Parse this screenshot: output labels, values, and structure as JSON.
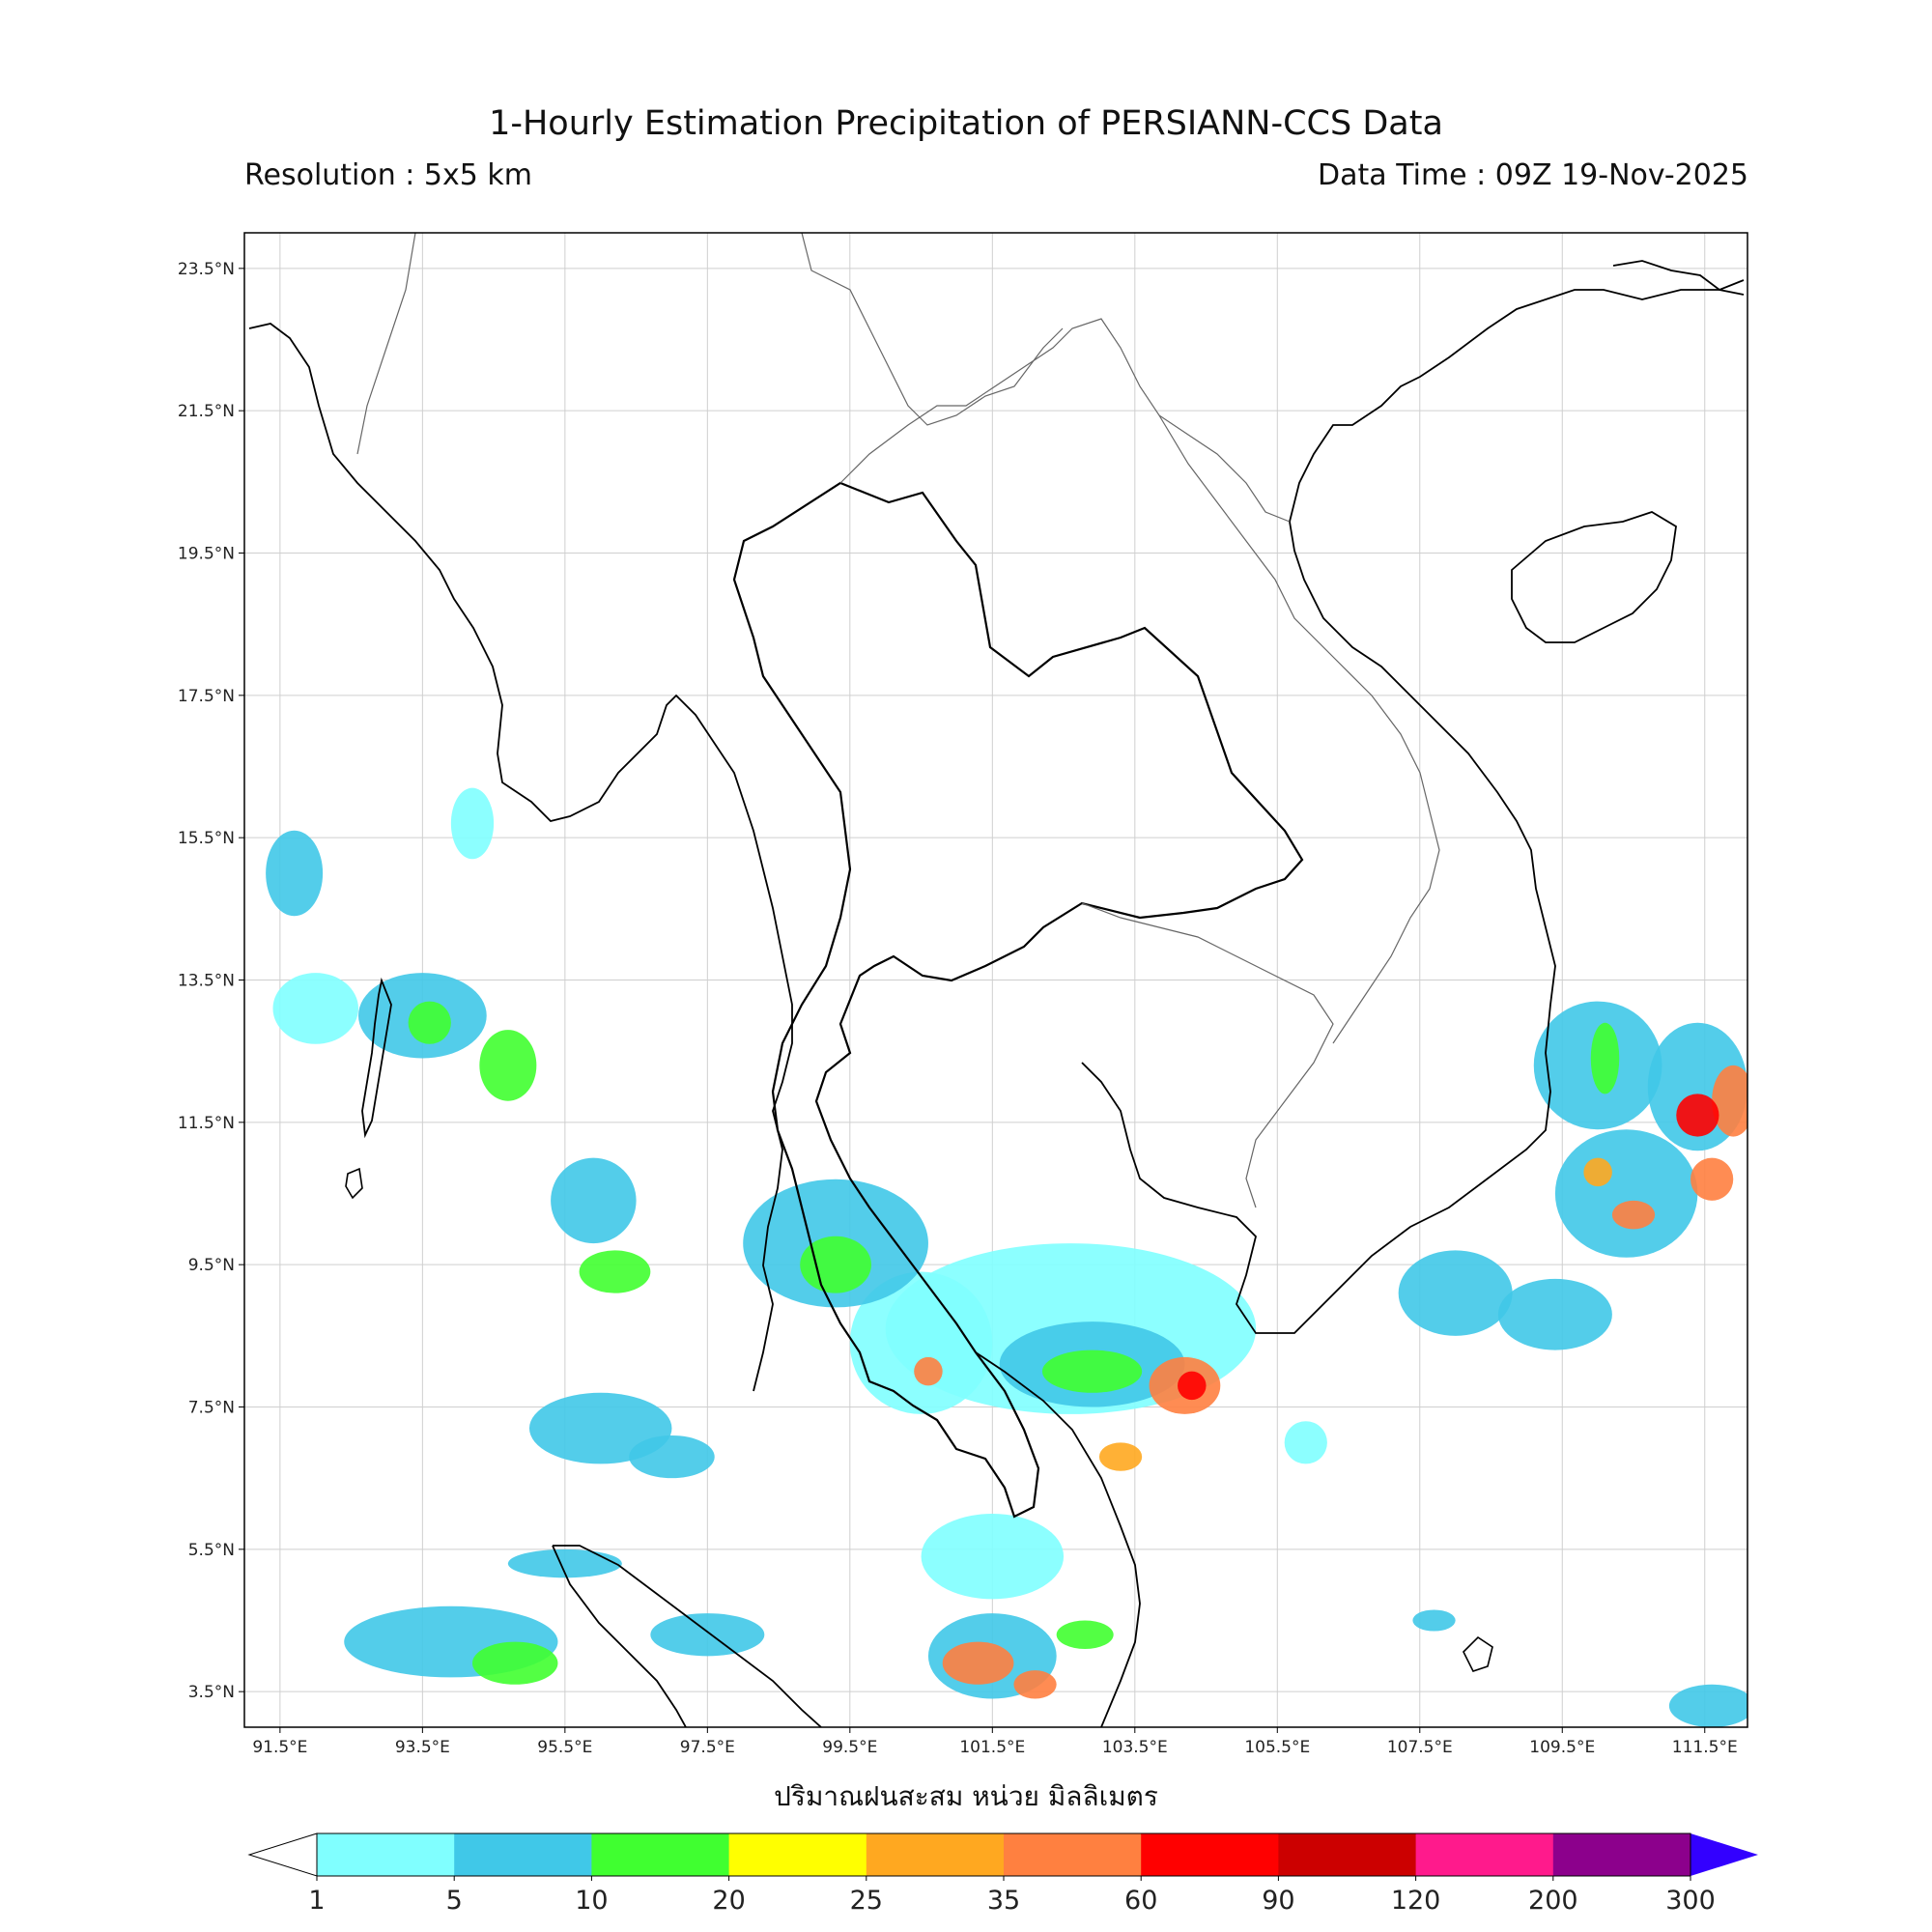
{
  "title": "1-Hourly Estimation Precipitation of PERSIANN-CCS Data",
  "resolution_text": "Resolution : 5x5 km",
  "data_time_text": "Data Time : 09Z 19-Nov-2025",
  "xlabel": "ปริมาณฝนสะสม หน่วย มิลลิเมตร",
  "map": {
    "lon_range": [
      91.0,
      112.1
    ],
    "lat_range": [
      3.0,
      24.0
    ],
    "lon_ticks": [
      "91.5°E",
      "93.5°E",
      "95.5°E",
      "97.5°E",
      "99.5°E",
      "101.5°E",
      "103.5°E",
      "105.5°E",
      "107.5°E",
      "109.5°E",
      "111.5°E"
    ],
    "lat_ticks": [
      "23.5°N",
      "21.5°N",
      "19.5°N",
      "17.5°N",
      "15.5°N",
      "13.5°N",
      "11.5°N",
      "9.5°N",
      "7.5°N",
      "5.5°N",
      "3.5°N"
    ],
    "grid": true
  },
  "colorbar": {
    "labels": [
      "1",
      "5",
      "10",
      "20",
      "25",
      "35",
      "60",
      "90",
      "120",
      "200",
      "300"
    ],
    "colors": [
      "#80ffff",
      "#40c8e8",
      "#40ff30",
      "#ffff00",
      "#ffa820",
      "#ff8040",
      "#ff0000",
      "#cc0000",
      "#ff1a8c",
      "#8c008c"
    ],
    "extend_low_color": "#ffffff",
    "extend_high_color": "#3300ff"
  },
  "rain_areas": [
    {
      "lon": 91.7,
      "lat": 15.0,
      "rx": 0.4,
      "ry": 0.6,
      "level": 1
    },
    {
      "lon": 92.0,
      "lat": 13.1,
      "rx": 0.6,
      "ry": 0.5,
      "level": 0
    },
    {
      "lon": 93.5,
      "lat": 13.0,
      "rx": 0.9,
      "ry": 0.6,
      "level": 1
    },
    {
      "lon": 94.7,
      "lat": 12.3,
      "rx": 0.4,
      "ry": 0.5,
      "level": 2
    },
    {
      "lon": 93.6,
      "lat": 12.9,
      "rx": 0.3,
      "ry": 0.3,
      "level": 2
    },
    {
      "lon": 94.2,
      "lat": 15.7,
      "rx": 0.3,
      "ry": 0.5,
      "level": 0
    },
    {
      "lon": 95.9,
      "lat": 10.4,
      "rx": 0.6,
      "ry": 0.6,
      "level": 1
    },
    {
      "lon": 96.2,
      "lat": 9.4,
      "rx": 0.5,
      "ry": 0.3,
      "level": 2
    },
    {
      "lon": 93.9,
      "lat": 4.2,
      "rx": 1.5,
      "ry": 0.5,
      "level": 1
    },
    {
      "lon": 94.8,
      "lat": 3.9,
      "rx": 0.6,
      "ry": 0.3,
      "level": 2
    },
    {
      "lon": 96.0,
      "lat": 7.2,
      "rx": 1.0,
      "ry": 0.5,
      "level": 1
    },
    {
      "lon": 97.0,
      "lat": 6.8,
      "rx": 0.6,
      "ry": 0.3,
      "level": 1
    },
    {
      "lon": 95.5,
      "lat": 5.3,
      "rx": 0.8,
      "ry": 0.2,
      "level": 1
    },
    {
      "lon": 97.5,
      "lat": 4.3,
      "rx": 0.8,
      "ry": 0.3,
      "level": 1
    },
    {
      "lon": 99.3,
      "lat": 9.8,
      "rx": 1.3,
      "ry": 0.9,
      "level": 1
    },
    {
      "lon": 99.3,
      "lat": 9.5,
      "rx": 0.5,
      "ry": 0.4,
      "level": 2
    },
    {
      "lon": 100.5,
      "lat": 8.4,
      "rx": 1.0,
      "ry": 1.0,
      "level": 0
    },
    {
      "lon": 100.6,
      "lat": 8.0,
      "rx": 0.2,
      "ry": 0.2,
      "level": 5
    },
    {
      "lon": 101.5,
      "lat": 5.4,
      "rx": 1.0,
      "ry": 0.6,
      "level": 0
    },
    {
      "lon": 101.5,
      "lat": 4.0,
      "rx": 0.9,
      "ry": 0.6,
      "level": 1
    },
    {
      "lon": 101.3,
      "lat": 3.9,
      "rx": 0.5,
      "ry": 0.3,
      "level": 5
    },
    {
      "lon": 102.1,
      "lat": 3.6,
      "rx": 0.3,
      "ry": 0.2,
      "level": 5
    },
    {
      "lon": 102.8,
      "lat": 4.3,
      "rx": 0.4,
      "ry": 0.2,
      "level": 2
    },
    {
      "lon": 102.6,
      "lat": 8.6,
      "rx": 2.6,
      "ry": 1.2,
      "level": 0
    },
    {
      "lon": 102.9,
      "lat": 8.1,
      "rx": 1.3,
      "ry": 0.6,
      "level": 1
    },
    {
      "lon": 102.9,
      "lat": 8.0,
      "rx": 0.7,
      "ry": 0.3,
      "level": 2
    },
    {
      "lon": 104.2,
      "lat": 7.8,
      "rx": 0.5,
      "ry": 0.4,
      "level": 5
    },
    {
      "lon": 104.3,
      "lat": 7.8,
      "rx": 0.2,
      "ry": 0.2,
      "level": 6
    },
    {
      "lon": 103.3,
      "lat": 6.8,
      "rx": 0.3,
      "ry": 0.2,
      "level": 4
    },
    {
      "lon": 110.0,
      "lat": 12.3,
      "rx": 0.9,
      "ry": 0.9,
      "level": 1
    },
    {
      "lon": 110.1,
      "lat": 12.4,
      "rx": 0.2,
      "ry": 0.5,
      "level": 2
    },
    {
      "lon": 111.4,
      "lat": 12.0,
      "rx": 0.7,
      "ry": 0.9,
      "level": 1
    },
    {
      "lon": 111.4,
      "lat": 11.6,
      "rx": 0.3,
      "ry": 0.3,
      "level": 6
    },
    {
      "lon": 111.9,
      "lat": 11.8,
      "rx": 0.3,
      "ry": 0.5,
      "level": 5
    },
    {
      "lon": 110.4,
      "lat": 10.5,
      "rx": 1.0,
      "ry": 0.9,
      "level": 1
    },
    {
      "lon": 110.5,
      "lat": 10.2,
      "rx": 0.3,
      "ry": 0.2,
      "level": 5
    },
    {
      "lon": 110.0,
      "lat": 10.8,
      "rx": 0.2,
      "ry": 0.2,
      "level": 4
    },
    {
      "lon": 111.6,
      "lat": 10.7,
      "rx": 0.3,
      "ry": 0.3,
      "level": 5
    },
    {
      "lon": 108.0,
      "lat": 9.1,
      "rx": 0.8,
      "ry": 0.6,
      "level": 1
    },
    {
      "lon": 109.4,
      "lat": 8.8,
      "rx": 0.8,
      "ry": 0.5,
      "level": 1
    },
    {
      "lon": 107.7,
      "lat": 4.5,
      "rx": 0.3,
      "ry": 0.15,
      "level": 1
    },
    {
      "lon": 111.6,
      "lat": 3.3,
      "rx": 0.6,
      "ry": 0.3,
      "level": 1
    },
    {
      "lon": 105.9,
      "lat": 7.0,
      "rx": 0.3,
      "ry": 0.3,
      "level": 0
    }
  ]
}
